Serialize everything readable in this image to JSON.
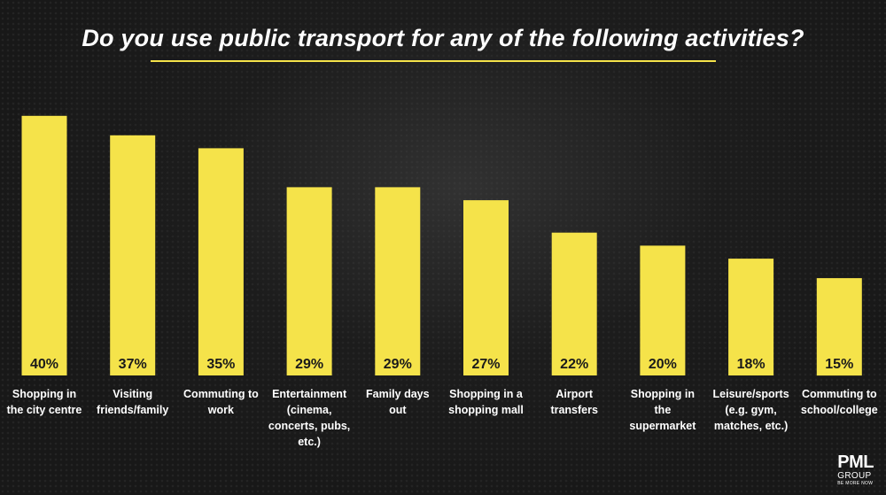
{
  "title": "Do you use public transport for any of the following activities?",
  "colors": {
    "bar": "#f5e34a",
    "accent": "#f5e34a",
    "text": "#ffffff",
    "value_text": "#1a1a1a",
    "background": "#1c1c1c"
  },
  "chart_data": {
    "type": "bar",
    "title": "Do you use public transport for any of the following activities?",
    "xlabel": "",
    "ylabel": "",
    "ylim": [
      0,
      42
    ],
    "grid": false,
    "unit": "%",
    "categories": [
      [
        "Shopping in",
        "the city centre"
      ],
      [
        "Visiting",
        "friends/family"
      ],
      [
        "Commuting to",
        "work"
      ],
      [
        "Entertainment",
        "(cinema,",
        "concerts, pubs,",
        "etc.)"
      ],
      [
        "Family days",
        "out"
      ],
      [
        "Shopping in a",
        "shopping mall"
      ],
      [
        "Airport",
        "transfers"
      ],
      [
        "Shopping in",
        "the",
        "supermarket"
      ],
      [
        "Leisure/sports",
        "(e.g. gym,",
        "matches, etc.)"
      ],
      [
        "Commuting to",
        "school/college"
      ]
    ],
    "values": [
      40,
      37,
      35,
      29,
      29,
      27,
      22,
      20,
      18,
      15
    ],
    "value_labels": [
      "40%",
      "37%",
      "35%",
      "29%",
      "29%",
      "27%",
      "22%",
      "20%",
      "18%",
      "15%"
    ]
  },
  "logo": {
    "main": "PML",
    "sub": "GROUP",
    "tagline": "BE MORE NOW"
  }
}
